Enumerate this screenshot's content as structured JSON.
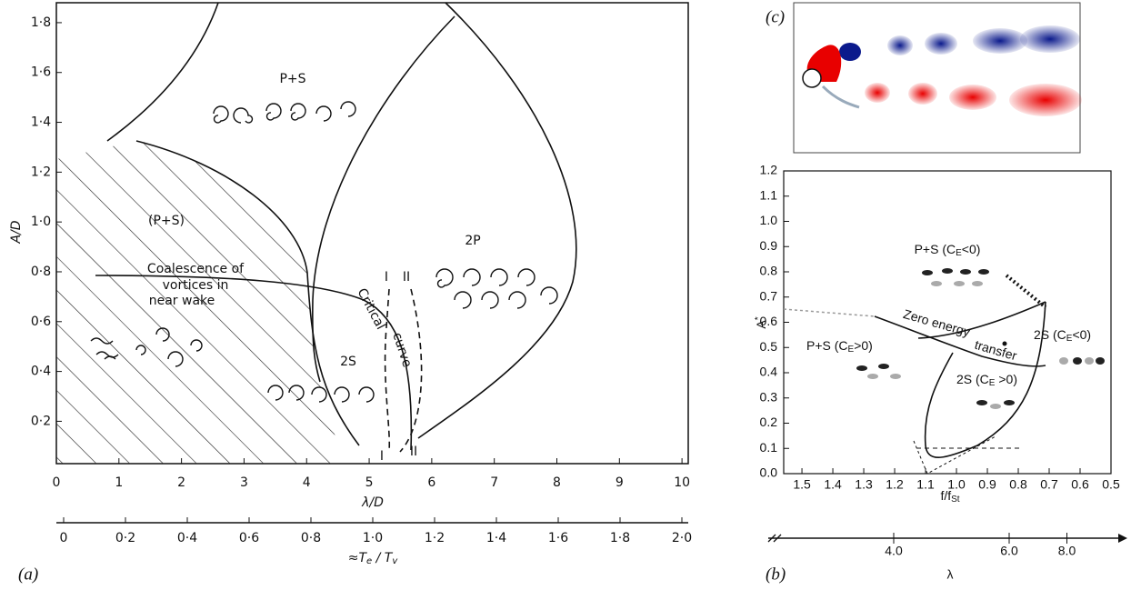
{
  "panel_a": {
    "tag": "(a)",
    "x_label": "λ/D",
    "y_label": "A/D",
    "xlim": [
      0,
      10.1
    ],
    "ylim": [
      0.03,
      1.88
    ],
    "xticks": [
      0,
      1,
      2,
      3,
      4,
      5,
      6,
      7,
      8,
      9,
      10
    ],
    "yticks": [
      {
        "value": 0.2,
        "label": "0·2"
      },
      {
        "value": 0.4,
        "label": "0·4"
      },
      {
        "value": 0.6,
        "label": "0·6"
      },
      {
        "value": 0.8,
        "label": "0·8"
      },
      {
        "value": 1.0,
        "label": "1·0"
      },
      {
        "value": 1.2,
        "label": "1·2"
      },
      {
        "value": 1.4,
        "label": "1·4"
      },
      {
        "value": 1.6,
        "label": "1·6"
      },
      {
        "value": 1.8,
        "label": "1·8"
      }
    ],
    "x2_label": [
      "≈T",
      {
        "sub": "e"
      },
      " / T",
      {
        "sub": "v"
      }
    ],
    "x2lim": [
      0,
      2
    ],
    "x2ticks": [
      0,
      {
        "value": 0.2,
        "label": "0·2"
      },
      {
        "value": 0.4,
        "label": "0·4"
      },
      {
        "value": 0.6,
        "label": "0·6"
      },
      {
        "value": 0.8,
        "label": "0·8"
      },
      {
        "value": 1.0,
        "label": "1·0"
      },
      {
        "value": 1.2,
        "label": "1·2"
      },
      {
        "value": 1.4,
        "label": "1·4"
      },
      {
        "value": 1.6,
        "label": "1·6"
      },
      {
        "value": 1.8,
        "label": "1·8"
      },
      {
        "value": 2.0,
        "label": "2·0"
      }
    ],
    "labels": [
      "P+S",
      "(P+S)",
      "2P",
      "2S",
      "Coalescence of",
      "vortices in",
      "near wake",
      "I",
      "II",
      "Critical",
      "curve",
      "I",
      "II"
    ]
  },
  "panel_b": {
    "tag": "(b)",
    "x_label": [
      "f/f",
      {
        "sub": "St"
      }
    ],
    "y_label": [
      "A",
      {
        "sup": "*"
      }
    ],
    "xlim": [
      1.559,
      0.5
    ],
    "ylim": [
      0,
      1.2
    ],
    "xticks": [
      1.5,
      1.4,
      1.3,
      1.2,
      1.1,
      {
        "value": 1.0,
        "label": "1.0"
      },
      0.9,
      0.8,
      0.7,
      0.6,
      0.5
    ],
    "yticks": [
      {
        "value": 0,
        "label": "0.0"
      },
      0.1,
      0.2,
      0.3,
      0.4,
      0.5,
      0.6,
      0.7,
      0.8,
      0.9,
      {
        "value": 1.0,
        "label": "1.0"
      },
      1.1,
      1.2
    ],
    "lambda_label": "λ",
    "lambda_ticks": [
      {
        "value": 4,
        "label": "4.0"
      },
      {
        "value": 6,
        "label": "6.0"
      },
      {
        "value": 8,
        "label": "8.0"
      }
    ],
    "labels": [
      [
        "P+S (C",
        {
          "sub": "E"
        },
        "<0)"
      ],
      [
        "Zero energy"
      ],
      [
        "transfer"
      ],
      [
        "P+S (C",
        {
          "sub": "E"
        },
        ">0)"
      ],
      [
        "2S (C",
        {
          "sub": "E"
        },
        "<0)"
      ],
      [
        "2S  (C",
        {
          "sub": "E"
        },
        " >0)"
      ]
    ]
  },
  "panel_c": {
    "tag": "(c)"
  }
}
